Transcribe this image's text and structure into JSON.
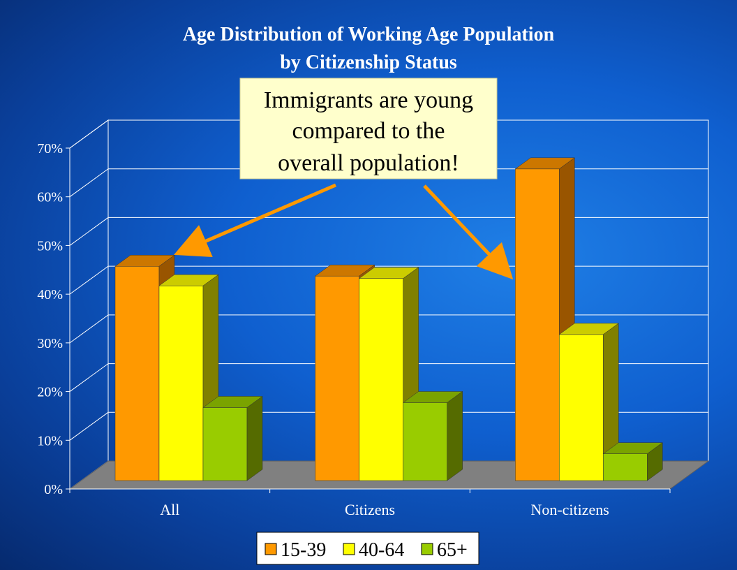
{
  "colors": {
    "orange_front": "#FF9900",
    "yellow_front": "#FFFF00",
    "green_front": "#99CC00",
    "arrow": "#FF9900",
    "note_bg": "#FFFFCC"
  },
  "annotation": {
    "lines": [
      "Immigrants are young",
      "compared to the",
      "overall population!"
    ]
  },
  "chart_data": {
    "type": "bar",
    "title": "Age Distribution of Working Age Population",
    "subtitle": "by Citizenship Status",
    "categories": [
      "All",
      "Citizens",
      "Non-citizens"
    ],
    "series": [
      {
        "name": "15-39",
        "values": [
          44,
          42,
          64
        ]
      },
      {
        "name": "40-64",
        "values": [
          40,
          41.5,
          30
        ]
      },
      {
        "name": "65+",
        "values": [
          15,
          16,
          5.5
        ]
      }
    ],
    "ylim": [
      0,
      70
    ],
    "yticks": [
      "0%",
      "10%",
      "20%",
      "30%",
      "40%",
      "50%",
      "60%",
      "70%"
    ],
    "grid": true,
    "legend_position": "bottom"
  }
}
